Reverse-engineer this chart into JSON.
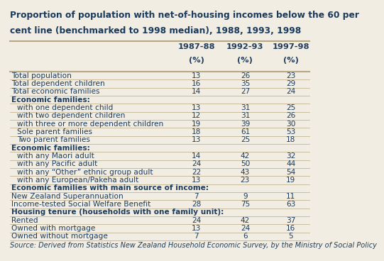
{
  "title_line1": "Proportion of population with net-of-housing incomes below the 60 per",
  "title_line2": "cent line (benchmarked to 1998 median), 1988, 1993, 1998",
  "col_headers": [
    [
      "1987-88",
      "(%)"
    ],
    [
      "1992-93",
      "(%)"
    ],
    [
      "1997-98",
      "(%)"
    ]
  ],
  "source": "Source: Derived from Statistics New Zealand Household Economic Survey, by the Ministry of Social Policy",
  "background_color": "#f2ede3",
  "rows": [
    {
      "label": "Total population",
      "values": [
        13,
        26,
        23
      ],
      "bold": false,
      "section": false,
      "indent": false
    },
    {
      "label": "Total dependent children",
      "values": [
        16,
        35,
        29
      ],
      "bold": false,
      "section": false,
      "indent": false
    },
    {
      "label": "Total economic families",
      "values": [
        14,
        27,
        24
      ],
      "bold": false,
      "section": false,
      "indent": false
    },
    {
      "label": "Economic families:",
      "values": [
        null,
        null,
        null
      ],
      "bold": true,
      "section": true,
      "indent": false
    },
    {
      "label": "with one dependent child",
      "values": [
        13,
        31,
        25
      ],
      "bold": false,
      "section": false,
      "indent": true
    },
    {
      "label": "with two dependent children",
      "values": [
        12,
        31,
        26
      ],
      "bold": false,
      "section": false,
      "indent": true
    },
    {
      "label": "with three or more dependent children",
      "values": [
        19,
        39,
        30
      ],
      "bold": false,
      "section": false,
      "indent": true
    },
    {
      "label": "Sole parent families",
      "values": [
        18,
        61,
        53
      ],
      "bold": false,
      "section": false,
      "indent": true
    },
    {
      "label": "Two parent families",
      "values": [
        13,
        25,
        18
      ],
      "bold": false,
      "section": false,
      "indent": true
    },
    {
      "label": "Economic families:",
      "values": [
        null,
        null,
        null
      ],
      "bold": true,
      "section": true,
      "indent": false
    },
    {
      "label": "with any Maori adult",
      "values": [
        14,
        42,
        32
      ],
      "bold": false,
      "section": false,
      "indent": true
    },
    {
      "label": "with any Pacific adult",
      "values": [
        24,
        50,
        44
      ],
      "bold": false,
      "section": false,
      "indent": true
    },
    {
      "label": "with any “Other” ethnic group adult",
      "values": [
        22,
        43,
        54
      ],
      "bold": false,
      "section": false,
      "indent": true
    },
    {
      "label": "with any European/Pakeha adult",
      "values": [
        13,
        23,
        19
      ],
      "bold": false,
      "section": false,
      "indent": true
    },
    {
      "label": "Economic families with main source of income:",
      "values": [
        null,
        null,
        null
      ],
      "bold": true,
      "section": true,
      "indent": false
    },
    {
      "label": "New Zealand Superannuation",
      "values": [
        7,
        9,
        11
      ],
      "bold": false,
      "section": false,
      "indent": false
    },
    {
      "label": "Income-tested Social Welfare Benefit",
      "values": [
        28,
        75,
        63
      ],
      "bold": false,
      "section": false,
      "indent": false
    },
    {
      "label": "Housing tenure (households with one family unit):",
      "values": [
        null,
        null,
        null
      ],
      "bold": true,
      "section": true,
      "indent": false
    },
    {
      "label": "Rented",
      "values": [
        24,
        42,
        37
      ],
      "bold": false,
      "section": false,
      "indent": false
    },
    {
      "label": "Owned with mortgage",
      "values": [
        13,
        24,
        16
      ],
      "bold": false,
      "section": false,
      "indent": false
    },
    {
      "label": "Owned without mortgage",
      "values": [
        7,
        6,
        5
      ],
      "bold": false,
      "section": false,
      "indent": false
    }
  ],
  "title_fontsize": 8.8,
  "body_fontsize": 7.6,
  "col_header_fontsize": 8.2,
  "source_fontsize": 7.0,
  "title_color": "#1a3a5c",
  "body_color": "#1e3d5c",
  "line_color": "#b8a882"
}
